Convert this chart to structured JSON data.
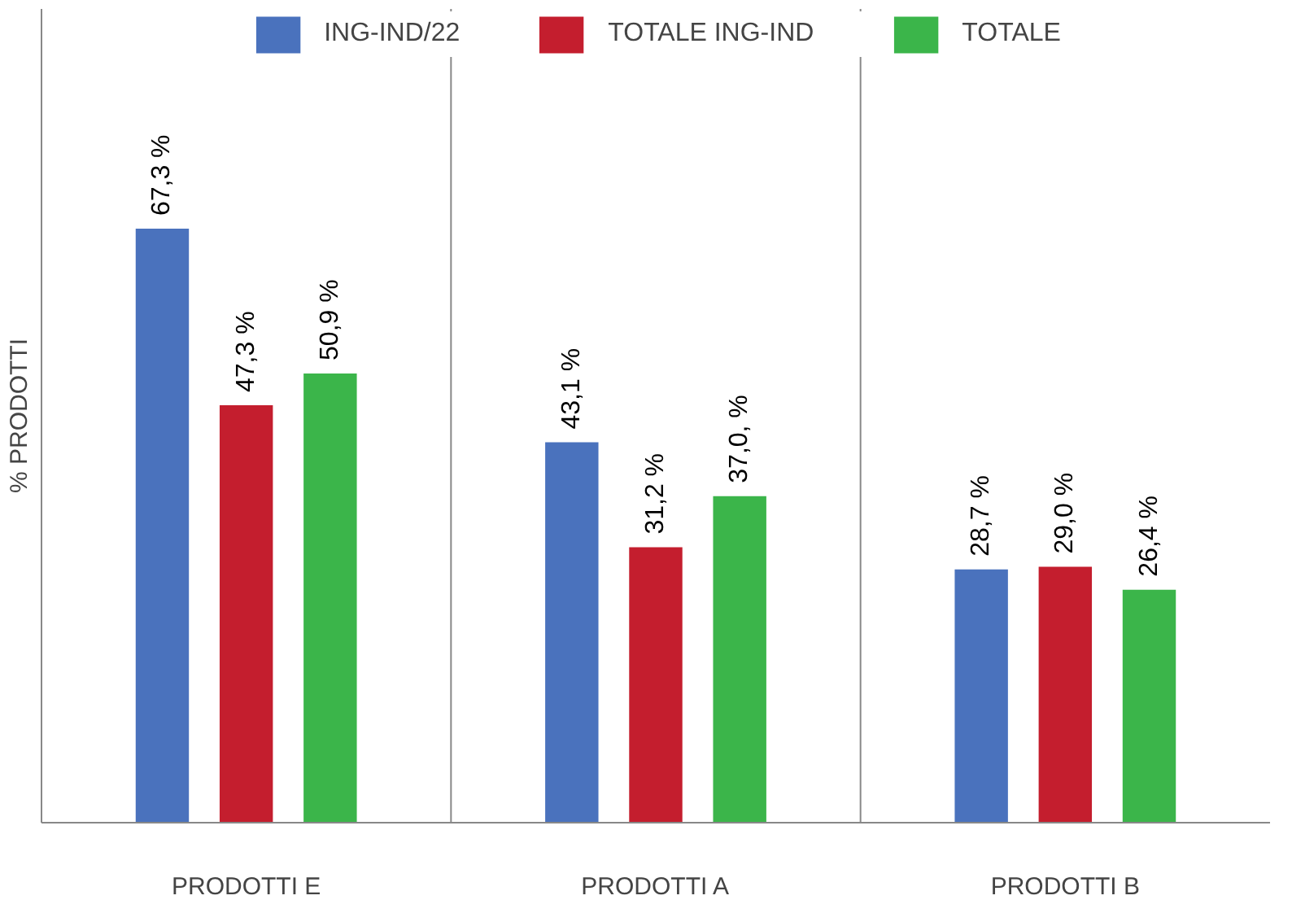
{
  "chart_data": {
    "type": "bar",
    "ylabel": "% PRODOTTI",
    "categories": [
      "PRODOTTI E",
      "PRODOTTI A",
      "PRODOTTI B"
    ],
    "legend": "top",
    "series": [
      {
        "name": "ING-IND/22",
        "color": "#4a72bd",
        "values": [
          67.3,
          43.1,
          28.7
        ],
        "value_labels": [
          "67,3 %",
          "43,1 %",
          "28,7 %"
        ]
      },
      {
        "name": "TOTALE ING-IND",
        "color": "#c41e2e",
        "values": [
          47.3,
          31.2,
          29.0
        ],
        "value_labels": [
          "47,3 %",
          "31,2 %",
          "29,0 %"
        ]
      },
      {
        "name": "TOTALE",
        "color": "#3bb54a",
        "values": [
          50.9,
          37.0,
          26.4
        ],
        "value_labels": [
          "50,9 %",
          "37,0, %",
          "26,4 %"
        ]
      }
    ]
  }
}
